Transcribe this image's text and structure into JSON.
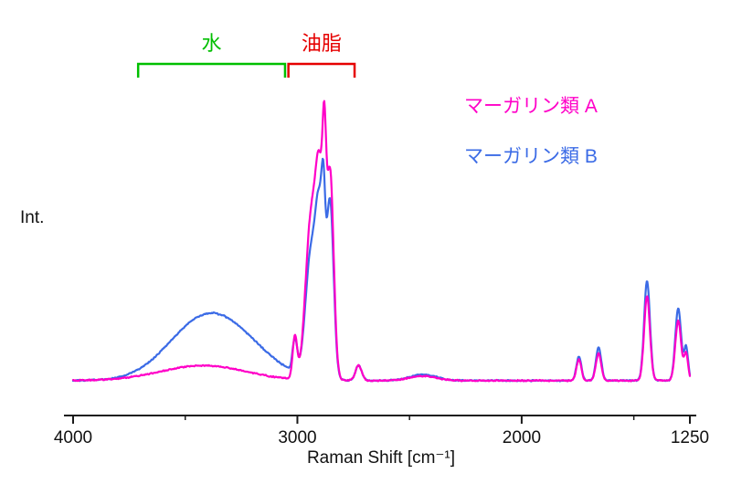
{
  "chart_data": {
    "type": "line",
    "title": "",
    "xlabel": "Raman Shift [cm⁻¹]",
    "ylabel": "Int.",
    "grid": false,
    "legend_position": "upper right",
    "x_axis": {
      "min": 1250,
      "max": 4000,
      "reversed": true,
      "major_ticks": [
        4000,
        3000,
        2000,
        1250
      ],
      "minor_ticks": [
        3500,
        2500,
        1500
      ]
    },
    "y_axis": {
      "label": "Int.",
      "ticks_visible": false
    },
    "annotations": [
      {
        "label": "水",
        "color": "#00bf00",
        "range_cm": [
          3710,
          3055
        ]
      },
      {
        "label": "油脂",
        "color": "#e60000",
        "range_cm": [
          3040,
          2745
        ]
      }
    ],
    "series": [
      {
        "name": "マーガリン類 A",
        "color": "#ff00c8",
        "baseline": 0.025,
        "peaks_cm_sigma_height": [
          [
            3420,
            190,
            0.05
          ],
          [
            3011,
            10,
            0.14
          ],
          [
            2940,
            24,
            0.52
          ],
          [
            2900,
            18,
            0.6
          ],
          [
            2880,
            8,
            0.4
          ],
          [
            2854,
            16,
            0.68
          ],
          [
            2727,
            14,
            0.05
          ],
          [
            2440,
            60,
            0.015
          ],
          [
            1745,
            11,
            0.07
          ],
          [
            1657,
            12,
            0.09
          ],
          [
            1441,
            13,
            0.28
          ],
          [
            1302,
            13,
            0.2
          ],
          [
            1267,
            9,
            0.09
          ]
        ]
      },
      {
        "name": "マーガリン類 B",
        "color": "#3b6be6",
        "baseline": 0.025,
        "peaks_cm_sigma_height": [
          [
            3460,
            150,
            0.13
          ],
          [
            3290,
            160,
            0.13
          ],
          [
            3011,
            10,
            0.11
          ],
          [
            2940,
            24,
            0.4
          ],
          [
            2900,
            18,
            0.5
          ],
          [
            2884,
            8,
            0.26
          ],
          [
            2854,
            16,
            0.58
          ],
          [
            2727,
            14,
            0.05
          ],
          [
            2440,
            60,
            0.02
          ],
          [
            1745,
            11,
            0.08
          ],
          [
            1657,
            12,
            0.11
          ],
          [
            1441,
            13,
            0.33
          ],
          [
            1302,
            13,
            0.24
          ],
          [
            1267,
            9,
            0.11
          ]
        ]
      }
    ]
  }
}
